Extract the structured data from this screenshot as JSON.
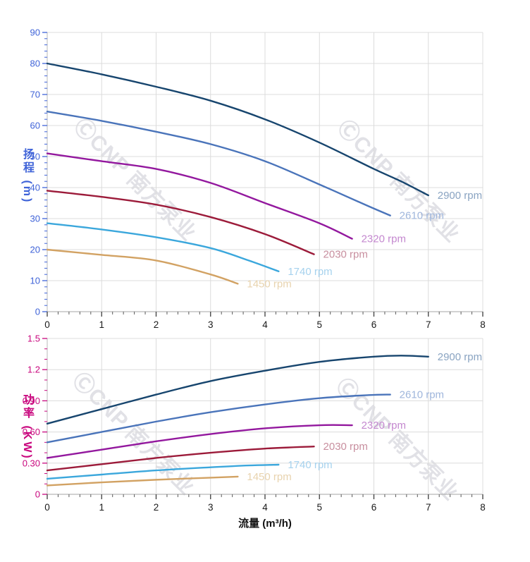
{
  "watermark": {
    "text": "ⒸCNP 南方泵业"
  },
  "x_axis_title": "流量 (m³/h)",
  "chart_data": [
    {
      "id": "head-chart",
      "type": "line",
      "title": "",
      "xlabel": "流量 (m³/h)",
      "ylabel": "扬程 (m)",
      "xlim": [
        0,
        8
      ],
      "ylim": [
        0,
        90
      ],
      "grid": true,
      "legend_position": "end-of-curve",
      "axis_color": "#3f63d8",
      "x_ticks": [
        0,
        1,
        2,
        3,
        4,
        5,
        6,
        7,
        8
      ],
      "x_tick_labels": [
        "0",
        "1",
        "2",
        "3",
        "4",
        "5",
        "6",
        "7",
        "8"
      ],
      "x_minor_step": 0.2,
      "y_ticks": [
        0,
        10,
        20,
        30,
        40,
        50,
        60,
        70,
        80,
        90
      ],
      "y_tick_labels": [
        "0",
        "10",
        "20",
        "30",
        "40",
        "50",
        "60",
        "70",
        "80",
        "90"
      ],
      "y_minor_step": 2,
      "series": [
        {
          "name": "2900 rpm",
          "color": "#17456e",
          "label_color": "#8aa4c2",
          "points": [
            [
              0,
              80
            ],
            [
              1,
              76.5
            ],
            [
              2,
              72.5
            ],
            [
              3,
              68
            ],
            [
              4,
              62
            ],
            [
              5,
              54.5
            ],
            [
              6,
              46
            ],
            [
              6.5,
              42
            ],
            [
              7,
              37.5
            ]
          ]
        },
        {
          "name": "2610 rpm",
          "color": "#4a74ba",
          "label_color": "#9fb6dc",
          "points": [
            [
              0,
              64.5
            ],
            [
              1,
              61.5
            ],
            [
              2,
              58
            ],
            [
              3,
              54
            ],
            [
              4,
              48.5
            ],
            [
              5,
              41
            ],
            [
              5.9,
              34
            ],
            [
              6.3,
              31
            ]
          ]
        },
        {
          "name": "2320 rpm",
          "color": "#93189e",
          "label_color": "#c488cf",
          "points": [
            [
              0,
              51
            ],
            [
              1,
              48.5
            ],
            [
              2,
              46
            ],
            [
              3,
              41.5
            ],
            [
              4,
              35
            ],
            [
              5,
              28.5
            ],
            [
              5.6,
              23.5
            ]
          ]
        },
        {
          "name": "2030 rpm",
          "color": "#9c1b3a",
          "label_color": "#c88f9f",
          "points": [
            [
              0,
              39
            ],
            [
              1,
              37
            ],
            [
              2,
              34.5
            ],
            [
              3,
              30.5
            ],
            [
              4,
              25
            ],
            [
              4.9,
              18.5
            ]
          ]
        },
        {
          "name": "1740 rpm",
          "color": "#3ba7dc",
          "label_color": "#a6d2ee",
          "points": [
            [
              0,
              28.5
            ],
            [
              1,
              26.5
            ],
            [
              2,
              24
            ],
            [
              3,
              20.5
            ],
            [
              3.7,
              16.5
            ],
            [
              4.25,
              13
            ]
          ]
        },
        {
          "name": "1450 rpm",
          "color": "#d2a263",
          "label_color": "#e8d3ae",
          "points": [
            [
              0,
              20
            ],
            [
              1,
              18.3
            ],
            [
              2,
              16.5
            ],
            [
              3,
              12
            ],
            [
              3.5,
              9
            ]
          ]
        }
      ]
    },
    {
      "id": "power-chart",
      "type": "line",
      "title": "",
      "xlabel": "流量 (m³/h)",
      "ylabel": "功率 (KW)",
      "xlim": [
        0,
        8
      ],
      "ylim": [
        0,
        1.5
      ],
      "grid": true,
      "legend_position": "end-of-curve",
      "axis_color": "#c9077e",
      "x_ticks": [
        0,
        1,
        2,
        3,
        4,
        5,
        6,
        7,
        8
      ],
      "x_tick_labels": [
        "0",
        "1",
        "2",
        "3",
        "4",
        "5",
        "6",
        "7",
        "8"
      ],
      "x_minor_step": 0.2,
      "y_ticks": [
        0,
        0.3,
        0.6,
        0.9,
        1.2,
        1.5
      ],
      "y_tick_labels": [
        "0",
        "0.30",
        "0.60",
        "0.90",
        "1.2",
        "1.5"
      ],
      "y_minor_step": 0.1,
      "series": [
        {
          "name": "2900 rpm",
          "color": "#17456e",
          "label_color": "#8aa4c2",
          "points": [
            [
              0,
              0.68
            ],
            [
              1,
              0.82
            ],
            [
              2,
              0.96
            ],
            [
              3,
              1.09
            ],
            [
              4,
              1.19
            ],
            [
              5,
              1.275
            ],
            [
              6,
              1.325
            ],
            [
              6.5,
              1.335
            ],
            [
              7,
              1.325
            ]
          ]
        },
        {
          "name": "2610 rpm",
          "color": "#4a74ba",
          "label_color": "#9fb6dc",
          "points": [
            [
              0,
              0.5
            ],
            [
              1,
              0.6
            ],
            [
              2,
              0.7
            ],
            [
              3,
              0.79
            ],
            [
              4,
              0.865
            ],
            [
              5,
              0.925
            ],
            [
              5.9,
              0.955
            ],
            [
              6.3,
              0.96
            ]
          ]
        },
        {
          "name": "2320 rpm",
          "color": "#93189e",
          "label_color": "#c488cf",
          "points": [
            [
              0,
              0.35
            ],
            [
              1,
              0.43
            ],
            [
              2,
              0.51
            ],
            [
              3,
              0.58
            ],
            [
              4,
              0.635
            ],
            [
              5,
              0.665
            ],
            [
              5.6,
              0.665
            ]
          ]
        },
        {
          "name": "2030 rpm",
          "color": "#9c1b3a",
          "label_color": "#c88f9f",
          "points": [
            [
              0,
              0.23
            ],
            [
              1,
              0.29
            ],
            [
              2,
              0.35
            ],
            [
              3,
              0.4
            ],
            [
              4,
              0.44
            ],
            [
              4.9,
              0.46
            ]
          ]
        },
        {
          "name": "1740 rpm",
          "color": "#3ba7dc",
          "label_color": "#a6d2ee",
          "points": [
            [
              0,
              0.15
            ],
            [
              1,
              0.19
            ],
            [
              2,
              0.23
            ],
            [
              3,
              0.26
            ],
            [
              3.7,
              0.278
            ],
            [
              4.25,
              0.285
            ]
          ]
        },
        {
          "name": "1450 rpm",
          "color": "#d2a263",
          "label_color": "#e8d3ae",
          "points": [
            [
              0,
              0.085
            ],
            [
              1,
              0.115
            ],
            [
              2,
              0.14
            ],
            [
              3,
              0.16
            ],
            [
              3.5,
              0.17
            ]
          ]
        }
      ]
    }
  ]
}
